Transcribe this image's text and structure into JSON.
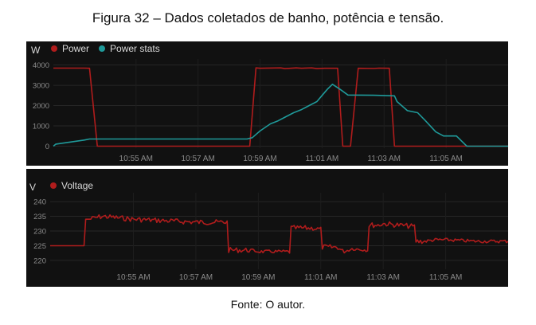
{
  "caption": {
    "title": "Figura 32 – Dados coletados de banho, potência e tensão.",
    "source": "Fonte: O autor."
  },
  "chart_data": [
    {
      "type": "line",
      "title": "",
      "ylabel": "W",
      "ylim": [
        -100,
        4300
      ],
      "yticks": [
        0,
        1000,
        2000,
        3000,
        4000
      ],
      "x_unit": "minutes",
      "xlim": [
        "10:52:20",
        "11:07:00"
      ],
      "xticks": [
        "10:55 AM",
        "10:57 AM",
        "10:59 AM",
        "11:01 AM",
        "11:03 AM",
        "11:05 AM"
      ],
      "grid": true,
      "legend": "top-left",
      "series": [
        {
          "name": "Power",
          "color": "#b01c1c",
          "x": [
            "10:52:20",
            "10:53:20",
            "10:53:30",
            "10:53:45",
            "10:54:20",
            "10:58:40",
            "10:58:52",
            "10:59:00",
            "10:59:40",
            "10:59:48",
            "11:00:10",
            "11:00:20",
            "11:00:40",
            "11:00:50",
            "11:01:05",
            "11:01:30",
            "11:01:40",
            "11:01:55",
            "11:02:10",
            "11:02:40",
            "11:02:50",
            "11:03:10",
            "11:03:20",
            "11:07:00"
          ],
          "y": [
            3850,
            3850,
            3840,
            0,
            0,
            0,
            3860,
            3840,
            3860,
            3820,
            3860,
            3840,
            3860,
            3820,
            3840,
            3840,
            0,
            0,
            3840,
            3830,
            3850,
            3840,
            0,
            0
          ]
        },
        {
          "name": "Power stats",
          "color": "#1f9a9a",
          "x": [
            "10:52:20",
            "10:52:25",
            "10:53:20",
            "10:53:30",
            "10:58:35",
            "10:58:45",
            "10:59:00",
            "10:59:20",
            "10:59:35",
            "10:59:50",
            "11:00:05",
            "11:00:20",
            "11:00:35",
            "11:00:50",
            "11:01:00",
            "11:01:10",
            "11:01:20",
            "11:01:35",
            "11:01:50",
            "11:02:40",
            "11:03:20",
            "11:03:25",
            "11:03:45",
            "11:04:05",
            "11:04:20",
            "11:04:40",
            "11:04:55",
            "11:05:20",
            "11:05:40",
            "11:07:00"
          ],
          "y": [
            0,
            100,
            300,
            350,
            350,
            420,
            750,
            1100,
            1250,
            1450,
            1650,
            1800,
            2000,
            2200,
            2500,
            2800,
            3050,
            2800,
            2520,
            2510,
            2480,
            2200,
            1750,
            1650,
            1250,
            700,
            500,
            500,
            0,
            0
          ]
        }
      ]
    },
    {
      "type": "line",
      "title": "",
      "ylabel": "V",
      "ylim": [
        217,
        243
      ],
      "yticks": [
        220,
        225,
        230,
        235,
        240
      ],
      "x_unit": "minutes",
      "xlim": [
        "10:52:20",
        "11:07:00"
      ],
      "xticks": [
        "10:55 AM",
        "10:57 AM",
        "10:59 AM",
        "11:01 AM",
        "11:03 AM",
        "11:05 AM"
      ],
      "grid": true,
      "legend": "top-left",
      "series": [
        {
          "name": "Voltage",
          "color": "#b01c1c",
          "x": [
            "10:52:20",
            "10:53:25",
            "10:53:35",
            "10:54:00",
            "10:55:00",
            "10:56:00",
            "10:57:00",
            "10:58:00",
            "10:58:45",
            "10:59:00",
            "10:59:30",
            "11:00:00",
            "11:00:30",
            "11:00:45",
            "11:01:00",
            "11:01:30",
            "11:01:45",
            "11:02:00",
            "11:02:30",
            "11:02:50",
            "11:03:00",
            "11:03:30",
            "11:04:00",
            "11:04:20",
            "11:04:40",
            "11:05:00",
            "11:06:00",
            "11:07:00"
          ],
          "y": [
            225,
            225,
            234,
            235,
            234,
            233.5,
            233,
            233,
            223.5,
            223,
            223,
            223,
            231,
            231,
            230.5,
            224.5,
            223,
            224,
            223.5,
            232,
            232.5,
            232,
            231.5,
            226.5,
            227,
            227,
            226.5,
            226.5
          ]
        }
      ]
    }
  ]
}
